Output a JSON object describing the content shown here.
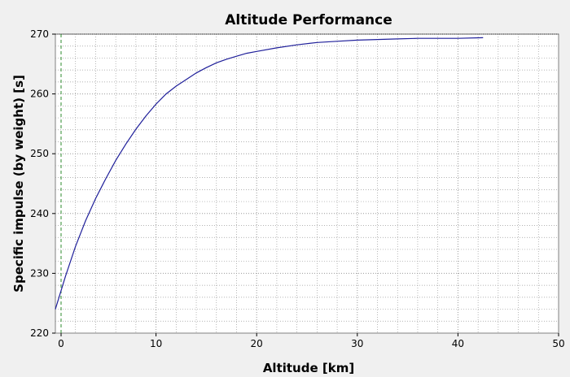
{
  "chart_data": {
    "type": "line",
    "title": "Altitude Performance",
    "xlabel": "Altitude [km]",
    "ylabel": "Specific impulse (by weight) [s]",
    "xlim": [
      0,
      50
    ],
    "ylim": [
      220,
      270
    ],
    "x_ticks": [
      "0",
      "10",
      "20",
      "30",
      "40",
      "50"
    ],
    "y_ticks": [
      "220",
      "230",
      "240",
      "250",
      "260",
      "270"
    ],
    "grid": true,
    "legend": "none",
    "colors": {
      "line": "#1f1f9a",
      "marker_line": "#2e8b2e",
      "plot_bg": "#ffffff",
      "grid": "#9a9a9a"
    },
    "marker_x": 0,
    "series": [
      {
        "x": [
          0,
          1,
          2,
          3,
          4,
          5,
          6,
          7,
          8,
          9,
          10,
          11,
          12,
          13,
          14,
          15,
          16,
          17,
          18,
          19,
          20,
          22,
          24,
          26,
          28,
          30,
          32,
          34,
          36,
          38,
          40,
          42.5
        ],
        "y": [
          224,
          229.5,
          234.5,
          238.8,
          242.5,
          245.8,
          248.9,
          251.6,
          254.1,
          256.3,
          258.3,
          260.0,
          261.3,
          262.4,
          263.5,
          264.4,
          265.2,
          265.8,
          266.3,
          266.8,
          267.1,
          267.7,
          268.2,
          268.6,
          268.8,
          269.0,
          269.1,
          269.2,
          269.3,
          269.3,
          269.3,
          269.4
        ]
      }
    ]
  }
}
